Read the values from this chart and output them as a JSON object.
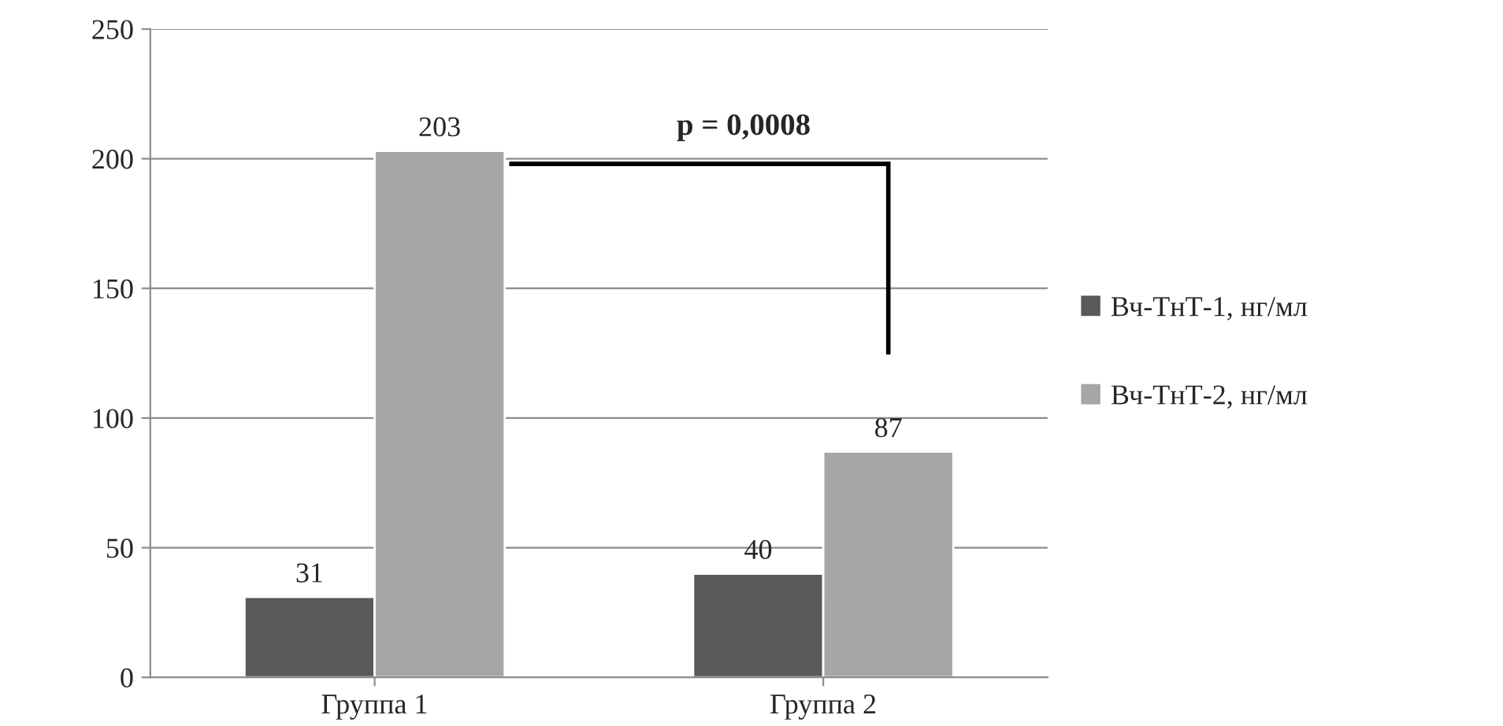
{
  "chart_data": {
    "type": "bar",
    "categories": [
      "Группа 1",
      "Группа 2"
    ],
    "series": [
      {
        "name": "Вч-ТнТ-1, нг/мл",
        "color": "#595959",
        "values": [
          31,
          40
        ]
      },
      {
        "name": "Вч-ТнТ-2, нг/мл",
        "color": "#a6a6a6",
        "values": [
          203,
          87
        ]
      }
    ],
    "ylim": [
      0,
      250
    ],
    "yticks": [
      0,
      50,
      100,
      150,
      200,
      250
    ],
    "grid": "y",
    "legend": "right",
    "data_labels": true,
    "annotations": [
      "p = 0,0008"
    ]
  }
}
